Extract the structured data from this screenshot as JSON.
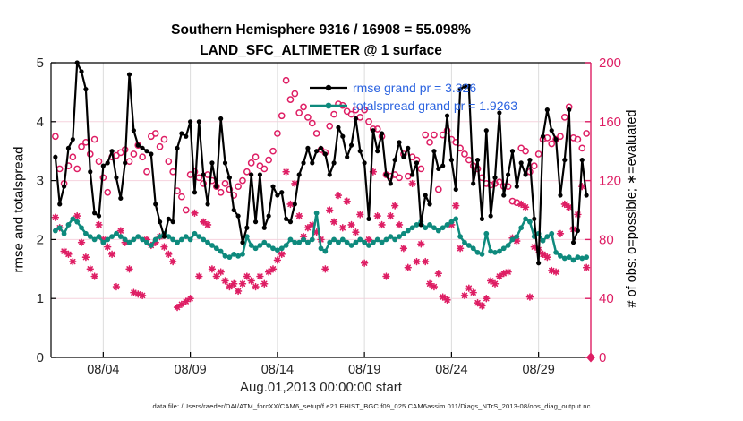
{
  "title": {
    "line1": "Southern Hemisphere 9316 / 16908 = 55.098%",
    "line2": "LAND_SFC_ALTIMETER @ 1 surface"
  },
  "legend": {
    "rmse_label": "rmse grand pr = 3.326",
    "totalspread_label": "totalspread grand pr = 1.9263",
    "text_color": "#2b63e0"
  },
  "caption": "data file: /Users/raeder/DAI/ATM_forcXX/CAM6_setup/f.e21.FHIST_BGC.f09_025.CAM6assim.011/Diags_NTrS_2013-08/obs_diag_output.nc",
  "colors": {
    "rmse": "#000000",
    "totalspread": "#0e8a7d",
    "obs": "#de1e64",
    "grid_vertical": "#dcdcdc",
    "grid_horizontal": "#f6d3de",
    "tick_text": "#262626"
  },
  "chart_data": {
    "type": "line",
    "title": "Southern Hemisphere 9316 / 16908 = 55.098% | LAND_SFC_ALTIMETER @ 1 surface",
    "xlabel": "Aug.01,2013 00:00:00 start",
    "ylabel_left": "rmse and totalspread",
    "ylabel_right": "# of obs: o=possible; ∗=evaluated",
    "xlim_days": [
      0,
      31
    ],
    "ylim_left": [
      0,
      5
    ],
    "ylim_right": [
      0,
      200
    ],
    "bin_hours": 6,
    "grid": true,
    "legend_position": "top-center-inside",
    "xticks": [
      {
        "day": 3,
        "label": "08/04"
      },
      {
        "day": 8,
        "label": "08/09"
      },
      {
        "day": 13,
        "label": "08/14"
      },
      {
        "day": 18,
        "label": "08/19"
      },
      {
        "day": 23,
        "label": "08/24"
      },
      {
        "day": 28,
        "label": "08/29"
      }
    ],
    "yticks_left": [
      0,
      1,
      2,
      3,
      4,
      5
    ],
    "yticks_right": [
      0,
      40,
      80,
      120,
      160,
      200
    ],
    "end_marker": {
      "day": 31,
      "value": 0,
      "axis": "right",
      "shape": "diamond"
    },
    "series": [
      {
        "name": "rmse",
        "axis": "left",
        "marker": "dot",
        "grand_pr": 3.326,
        "values": [
          3.4,
          2.6,
          2.9,
          3.55,
          3.7,
          5.0,
          4.85,
          4.55,
          3.15,
          2.45,
          2.4,
          3.25,
          3.3,
          3.5,
          3.05,
          2.7,
          3.3,
          4.8,
          3.85,
          3.6,
          3.55,
          3.5,
          3.45,
          2.6,
          2.3,
          2.05,
          2.35,
          2.3,
          3.55,
          3.8,
          3.75,
          4.0,
          2.8,
          4.0,
          3.1,
          2.6,
          3.3,
          2.9,
          4.05,
          3.3,
          3.05,
          2.5,
          2.4,
          1.95,
          2.2,
          3.1,
          2.3,
          3.1,
          2.2,
          2.4,
          2.9,
          2.75,
          2.8,
          2.35,
          2.3,
          2.6,
          3.1,
          3.3,
          3.55,
          3.3,
          3.5,
          3.55,
          3.45,
          3.1,
          3.3,
          3.9,
          3.75,
          3.4,
          3.6,
          4.05,
          3.5,
          3.3,
          2.35,
          3.85,
          3.5,
          3.8,
          3.1,
          2.95,
          3.35,
          3.65,
          3.4,
          3.55,
          3.1,
          3.3,
          2.25,
          2.75,
          2.6,
          3.5,
          3.2,
          3.25,
          4.1,
          3.35,
          2.85,
          4.55,
          4.6,
          4.6,
          2.95,
          3.35,
          2.35,
          3.85,
          2.4,
          3.05,
          4.15,
          2.75,
          3.1,
          3.5,
          2.9,
          3.3,
          3.1,
          3.35,
          2.35,
          1.6,
          3.75,
          4.2,
          3.85,
          3.7,
          2.75,
          3.35,
          4.2,
          1.95,
          2.15,
          3.35,
          2.75,
          null
        ]
      },
      {
        "name": "totalspread",
        "axis": "left",
        "marker": "dot",
        "grand_pr": 1.9263,
        "values": [
          2.15,
          2.2,
          2.1,
          2.25,
          2.35,
          2.3,
          2.2,
          2.1,
          2.05,
          2.0,
          2.05,
          1.95,
          2.0,
          2.05,
          2.1,
          2.05,
          2.0,
          1.95,
          2.0,
          2.05,
          2.0,
          1.95,
          1.9,
          2.0,
          2.05,
          2.1,
          2.05,
          2.0,
          1.95,
          2.0,
          2.05,
          2.0,
          2.1,
          2.05,
          2.0,
          1.95,
          1.9,
          1.85,
          1.8,
          1.72,
          1.7,
          1.75,
          1.72,
          1.75,
          2.05,
          1.9,
          1.85,
          1.9,
          1.95,
          1.9,
          1.85,
          1.82,
          1.85,
          1.9,
          2.0,
          1.95,
          1.95,
          2.0,
          1.95,
          2.0,
          2.45,
          1.85,
          1.8,
          1.95,
          2.0,
          1.95,
          2.0,
          1.95,
          1.9,
          1.95,
          2.0,
          1.95,
          1.9,
          1.95,
          2.0,
          1.95,
          2.0,
          2.05,
          2.0,
          2.05,
          2.1,
          2.15,
          2.2,
          2.25,
          2.3,
          2.2,
          2.25,
          2.2,
          2.15,
          2.2,
          2.25,
          2.3,
          2.35,
          2.05,
          1.95,
          1.9,
          1.85,
          1.78,
          1.75,
          2.1,
          1.8,
          1.78,
          1.8,
          1.85,
          1.9,
          2.0,
          2.05,
          2.2,
          2.35,
          2.3,
          2.05,
          2.1,
          1.98,
          2.05,
          2.1,
          1.78,
          1.72,
          1.68,
          1.7,
          1.65,
          1.7,
          1.68,
          1.7,
          null
        ]
      },
      {
        "name": "possible",
        "axis": "right",
        "marker": "circle",
        "values": [
          150,
          128,
          118,
          130,
          136,
          128,
          143,
          146,
          138,
          148,
          133,
          122,
          112,
          136,
          137,
          139,
          141,
          133,
          138,
          144,
          136,
          126,
          150,
          152,
          143,
          148,
          133,
          126,
          113,
          109,
          100,
          124,
          126,
          122,
          118,
          124,
          120,
          116,
          112,
          118,
          114,
          110,
          116,
          120,
          126,
          132,
          136,
          130,
          128,
          134,
          140,
          152,
          164,
          188,
          175,
          179,
          166,
          170,
          163,
          159,
          152,
          141,
          139,
          157,
          165,
          172,
          171,
          167,
          165,
          168,
          163,
          168,
          160,
          155,
          155,
          150,
          124,
          123,
          124,
          122,
          138,
          123,
          136,
          134,
          128,
          151,
          146,
          151,
          114,
          151,
          154,
          148,
          146,
          142,
          138,
          134,
          130,
          128,
          122,
          118,
          117,
          118,
          119,
          116,
          116,
          106,
          105,
          142,
          140,
          126,
          130,
          138,
          148,
          149,
          145,
          148,
          150,
          163,
          170,
          149,
          148,
          142,
          152,
          null
        ]
      },
      {
        "name": "evaluated",
        "axis": "right",
        "marker": "asterisk",
        "values": [
          95,
          88,
          72,
          70,
          65,
          96,
          78,
          68,
          60,
          55,
          90,
          80,
          75,
          70,
          48,
          86,
          78,
          60,
          44,
          43,
          42,
          80,
          76,
          78,
          82,
          75,
          70,
          65,
          34,
          36,
          38,
          40,
          98,
          55,
          92,
          90,
          60,
          55,
          58,
          52,
          48,
          50,
          45,
          50,
          55,
          52,
          48,
          55,
          50,
          58,
          60,
          66,
          70,
          126,
          104,
          118,
          96,
          82,
          88,
          90,
          85,
          80,
          60,
          100,
          92,
          110,
          88,
          106,
          90,
          85,
          97,
          64,
          80,
          126,
          96,
          90,
          55,
          96,
          103,
          90,
          74,
          61,
          118,
          65,
          77,
          65,
          50,
          48,
          57,
          41,
          39,
          90,
          103,
          74,
          42,
          47,
          44,
          37,
          35,
          40,
          52,
          50,
          55,
          57,
          58,
          81,
          79,
          104,
          102,
          41,
          75,
          73,
          70,
          68,
          59,
          58,
          84,
          104,
          102,
          87,
          97,
          116,
          61,
          null
        ]
      }
    ]
  }
}
